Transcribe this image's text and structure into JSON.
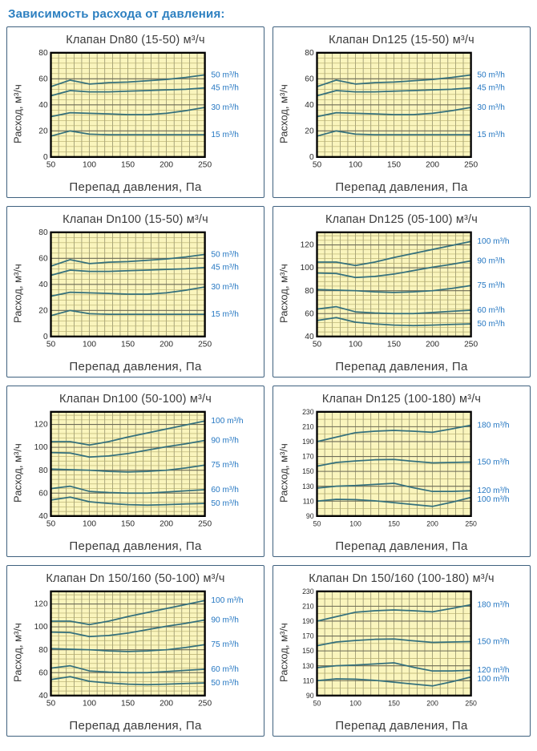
{
  "page": {
    "title": "Зависимость расхода от давления:"
  },
  "style": {
    "heading_color": "#2c7fc0",
    "panel_border": "#3f617f",
    "plot_bg": "#faf5bd",
    "plot_border": "#000000",
    "grid_minor": "#b4ac6d",
    "grid_major": "#6e6c57",
    "grid_vert": "#83805f",
    "line_color": "#34707c",
    "series_label_color": "#2577c2",
    "axis_text_color": "#2b2b2b"
  },
  "chart_data": [
    {
      "type": "line",
      "title": "Клапан Dn80 (15-50) м³/ч",
      "xlabel": "Перепад давления, Па",
      "ylabel": "Расход, м³/ч",
      "x": [
        50,
        75,
        100,
        125,
        150,
        175,
        200,
        225,
        250
      ],
      "xticks": [
        50,
        100,
        150,
        200,
        250
      ],
      "ylim": [
        0,
        80
      ],
      "yticks": [
        0,
        20,
        40,
        60,
        80
      ],
      "y_minor_step": 4,
      "x_minor_step": 10,
      "tick_font": 10.5,
      "legend_position": "right",
      "series": [
        {
          "name": "50 m³/h",
          "values": [
            54,
            59,
            56,
            57,
            57.5,
            58.5,
            59.5,
            61,
            63
          ]
        },
        {
          "name": "45 m³/h",
          "values": [
            47,
            51,
            50,
            50,
            50.5,
            51,
            51.5,
            52,
            53
          ]
        },
        {
          "name": "30 m³/h",
          "values": [
            31,
            34,
            33.5,
            33,
            32.5,
            32.5,
            33.5,
            35.5,
            38
          ]
        },
        {
          "name": "15 m³/h",
          "values": [
            16,
            20,
            17.5,
            17,
            17,
            17,
            17,
            17,
            17
          ]
        }
      ]
    },
    {
      "type": "line",
      "title": "Клапан Dn125 (15-50) м³/ч",
      "xlabel": "Перепад давления, Па",
      "ylabel": "Расход, м³/ч",
      "x": [
        50,
        75,
        100,
        125,
        150,
        175,
        200,
        225,
        250
      ],
      "xticks": [
        50,
        100,
        150,
        200,
        250
      ],
      "ylim": [
        0,
        80
      ],
      "yticks": [
        0,
        20,
        40,
        60,
        80
      ],
      "y_minor_step": 4,
      "x_minor_step": 10,
      "tick_font": 10.5,
      "legend_position": "right",
      "series": [
        {
          "name": "50 m³/h",
          "values": [
            54,
            59,
            56,
            57,
            57.5,
            58.5,
            59.5,
            61,
            63
          ]
        },
        {
          "name": "45 m³/h",
          "values": [
            47,
            51,
            50,
            50,
            50.5,
            51,
            51.5,
            52,
            53
          ]
        },
        {
          "name": "30 m³/h",
          "values": [
            31,
            34,
            33.5,
            33,
            32.5,
            32.5,
            33.5,
            35.5,
            38
          ]
        },
        {
          "name": "15 m³/h",
          "values": [
            16,
            20,
            17.5,
            17,
            17,
            17,
            17,
            17,
            17
          ]
        }
      ]
    },
    {
      "type": "line",
      "title": "Клапан Dn100 (15-50) м³/ч",
      "xlabel": "Перепад давления, Па",
      "ylabel": "Расход, м³/ч",
      "x": [
        50,
        75,
        100,
        125,
        150,
        175,
        200,
        225,
        250
      ],
      "xticks": [
        50,
        100,
        150,
        200,
        250
      ],
      "ylim": [
        0,
        80
      ],
      "yticks": [
        0,
        20,
        40,
        60,
        80
      ],
      "y_minor_step": 4,
      "x_minor_step": 10,
      "tick_font": 10.5,
      "legend_position": "right",
      "series": [
        {
          "name": "50 m³/h",
          "values": [
            54,
            59,
            56,
            57,
            57.5,
            58.5,
            59.5,
            61,
            63
          ]
        },
        {
          "name": "45 m³/h",
          "values": [
            47,
            51,
            50,
            50,
            50.5,
            51,
            51.5,
            52,
            53
          ]
        },
        {
          "name": "30 m³/h",
          "values": [
            31,
            34,
            33.5,
            33,
            32.5,
            32.5,
            33.5,
            35.5,
            38
          ]
        },
        {
          "name": "15 m³/h",
          "values": [
            16,
            20,
            17.5,
            17,
            17,
            17,
            17,
            17,
            17
          ]
        }
      ]
    },
    {
      "type": "line",
      "title": "Клапан Dn125 (05-100) м³/ч",
      "xlabel": "Перепад давления, Па",
      "ylabel": "Расход, м³/ч",
      "x": [
        50,
        75,
        100,
        125,
        150,
        175,
        200,
        225,
        250
      ],
      "xticks": [
        50,
        100,
        150,
        200,
        250
      ],
      "ylim": [
        40,
        131
      ],
      "yticks": [
        40,
        60,
        80,
        100,
        120
      ],
      "y_minor_step": 4,
      "x_minor_step": 10,
      "tick_font": 10.5,
      "legend_position": "right",
      "series": [
        {
          "name": "100 m³/h",
          "values": [
            105,
            105,
            102,
            105,
            109,
            112.5,
            116,
            119.5,
            123
          ]
        },
        {
          "name": "90 m³/h",
          "values": [
            95.5,
            95,
            91.5,
            92.5,
            94.5,
            97.5,
            100.5,
            103,
            106
          ]
        },
        {
          "name": "75 m³/h",
          "values": [
            81,
            80.5,
            80,
            79,
            78.5,
            79,
            80,
            82,
            84.5
          ]
        },
        {
          "name": "60 m³/h",
          "values": [
            64,
            66,
            61.5,
            60.5,
            60,
            60,
            61,
            62,
            63
          ]
        },
        {
          "name": "50 m³/h",
          "values": [
            54,
            56.5,
            52.5,
            51,
            50,
            49.5,
            50,
            50.5,
            51
          ]
        }
      ]
    },
    {
      "type": "line",
      "title": "Клапан Dn100 (50-100) м³/ч",
      "xlabel": "Перепад давления, Па",
      "ylabel": "Расход, м³/ч",
      "x": [
        50,
        75,
        100,
        125,
        150,
        175,
        200,
        225,
        250
      ],
      "xticks": [
        50,
        100,
        150,
        200,
        250
      ],
      "ylim": [
        40,
        131
      ],
      "yticks": [
        40,
        60,
        80,
        100,
        120
      ],
      "y_minor_step": 4,
      "x_minor_step": 10,
      "tick_font": 10.5,
      "legend_position": "right",
      "series": [
        {
          "name": "100 m³/h",
          "values": [
            105,
            105,
            102,
            105,
            109,
            112.5,
            116,
            119.5,
            123
          ]
        },
        {
          "name": "90 m³/h",
          "values": [
            95.5,
            95,
            91.5,
            92.5,
            94.5,
            97.5,
            100.5,
            103,
            106
          ]
        },
        {
          "name": "75 m³/h",
          "values": [
            81,
            80.5,
            80,
            79,
            78.5,
            79,
            80,
            82,
            84.5
          ]
        },
        {
          "name": "60 m³/h",
          "values": [
            64,
            66,
            61.5,
            60.5,
            60,
            60,
            61,
            62,
            63
          ]
        },
        {
          "name": "50 m³/h",
          "values": [
            54,
            56.5,
            52.5,
            51,
            50,
            49.5,
            50,
            50.5,
            51
          ]
        }
      ]
    },
    {
      "type": "line",
      "title": "Клапан Dn125 (100-180) м³/ч",
      "xlabel": "Перепад давления, Па",
      "ylabel": "Расход, м³/ч",
      "x": [
        50,
        75,
        100,
        125,
        150,
        175,
        200,
        225,
        250
      ],
      "xticks": [
        50,
        100,
        150,
        200,
        250
      ],
      "ylim": [
        90,
        230
      ],
      "yticks": [
        90,
        110,
        130,
        150,
        170,
        190,
        210,
        230
      ],
      "y_minor_step": 10,
      "x_minor_step": 10,
      "tick_font": 9,
      "legend_position": "right",
      "series": [
        {
          "name": "180 m³/h",
          "values": [
            190,
            196,
            202,
            204,
            205,
            204,
            202.5,
            207,
            212
          ]
        },
        {
          "name": "150 m³/h",
          "values": [
            157,
            162,
            164,
            165.5,
            166,
            163.5,
            161.5,
            162,
            162.5
          ]
        },
        {
          "name": "120 m³/h",
          "values": [
            127.5,
            130,
            131,
            132.5,
            134,
            128,
            123,
            123,
            124
          ]
        },
        {
          "name": "100 m³/h",
          "values": [
            110,
            112.5,
            112,
            110.5,
            108,
            105.5,
            103,
            108.5,
            115
          ]
        }
      ]
    },
    {
      "type": "line",
      "title": "Клапан Dn 150/160 (50-100) м³/ч",
      "xlabel": "Перепад давления, Па",
      "ylabel": "Расход, м³/ч",
      "x": [
        50,
        75,
        100,
        125,
        150,
        175,
        200,
        225,
        250
      ],
      "xticks": [
        50,
        100,
        150,
        200,
        250
      ],
      "ylim": [
        40,
        131
      ],
      "yticks": [
        40,
        60,
        80,
        100,
        120
      ],
      "y_minor_step": 4,
      "x_minor_step": 10,
      "tick_font": 10.5,
      "legend_position": "right",
      "series": [
        {
          "name": "100 m³/h",
          "values": [
            105,
            105,
            102,
            105,
            109,
            112.5,
            116,
            119.5,
            123
          ]
        },
        {
          "name": "90 m³/h",
          "values": [
            95.5,
            95,
            91.5,
            92.5,
            94.5,
            97.5,
            100.5,
            103,
            106
          ]
        },
        {
          "name": "75 m³/h",
          "values": [
            81,
            80.5,
            80,
            79,
            78.5,
            79,
            80,
            82,
            84.5
          ]
        },
        {
          "name": "60 m³/h",
          "values": [
            64,
            66,
            61.5,
            60.5,
            60,
            60,
            61,
            62,
            63
          ]
        },
        {
          "name": "50 m³/h",
          "values": [
            54,
            56.5,
            52.5,
            51,
            50,
            49.5,
            50,
            50.5,
            51
          ]
        }
      ]
    },
    {
      "type": "line",
      "title": "Клапан Dn 150/160 (100-180) м³/ч",
      "xlabel": "Перепад давления, Па",
      "ylabel": "Расход, м³/ч",
      "x": [
        50,
        75,
        100,
        125,
        150,
        175,
        200,
        225,
        250
      ],
      "xticks": [
        50,
        100,
        150,
        200,
        250
      ],
      "ylim": [
        90,
        230
      ],
      "yticks": [
        90,
        110,
        130,
        150,
        170,
        190,
        210,
        230
      ],
      "y_minor_step": 10,
      "x_minor_step": 10,
      "tick_font": 9,
      "legend_position": "right",
      "series": [
        {
          "name": "180 m³/h",
          "values": [
            190,
            196,
            202,
            204,
            205,
            204,
            202.5,
            207,
            212
          ]
        },
        {
          "name": "150 m³/h",
          "values": [
            157,
            162,
            164,
            165.5,
            166,
            163.5,
            161.5,
            162,
            162.5
          ]
        },
        {
          "name": "120 m³/h",
          "values": [
            127.5,
            130,
            131,
            132.5,
            134,
            128,
            123,
            123,
            124
          ]
        },
        {
          "name": "100 m³/h",
          "values": [
            110,
            112.5,
            112,
            110.5,
            108,
            105.5,
            103,
            108.5,
            115
          ]
        }
      ]
    }
  ]
}
